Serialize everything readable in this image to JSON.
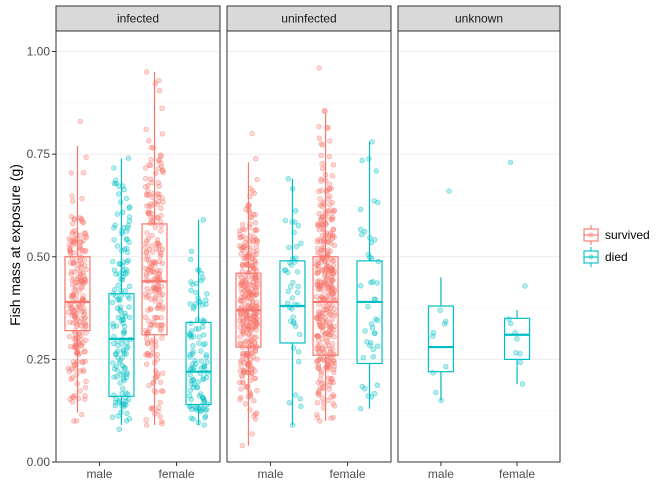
{
  "chart_data": {
    "type": "boxplot-jitter",
    "ylabel": "Fish mass at exposure (g)",
    "xlabel": "",
    "ylim": [
      0.0,
      1.05
    ],
    "y_ticks": [
      "0.00",
      "0.25",
      "0.50",
      "0.75",
      "1.00"
    ],
    "y_tick_values": [
      0.0,
      0.25,
      0.5,
      0.75,
      1.0
    ],
    "legend_placement": "right",
    "grid": true,
    "categories": [
      "male",
      "female"
    ],
    "series": [
      {
        "name": "survived",
        "color": "#F8766D"
      },
      {
        "name": "died",
        "color": "#00BFC4"
      }
    ],
    "facets": [
      {
        "label": "infected",
        "boxes": [
          {
            "category": "male",
            "series": "survived",
            "min": 0.12,
            "q1": 0.32,
            "median": 0.39,
            "q3": 0.5,
            "max": 0.77,
            "n_points": 220,
            "pmin": 0.1,
            "pmax": 0.83
          },
          {
            "category": "male",
            "series": "died",
            "min": 0.09,
            "q1": 0.16,
            "median": 0.3,
            "q3": 0.41,
            "max": 0.74,
            "n_points": 150,
            "pmin": 0.08,
            "pmax": 0.74
          },
          {
            "category": "female",
            "series": "survived",
            "min": 0.09,
            "q1": 0.31,
            "median": 0.44,
            "q3": 0.58,
            "max": 0.95,
            "n_points": 230,
            "pmin": 0.09,
            "pmax": 0.95
          },
          {
            "category": "female",
            "series": "died",
            "min": 0.09,
            "q1": 0.14,
            "median": 0.22,
            "q3": 0.34,
            "max": 0.59,
            "n_points": 110,
            "pmin": 0.09,
            "pmax": 0.59
          }
        ]
      },
      {
        "label": "uninfected",
        "boxes": [
          {
            "category": "male",
            "series": "survived",
            "min": 0.04,
            "q1": 0.28,
            "median": 0.37,
            "q3": 0.46,
            "max": 0.73,
            "n_points": 330,
            "pmin": 0.04,
            "pmax": 0.8
          },
          {
            "category": "male",
            "series": "died",
            "min": 0.09,
            "q1": 0.29,
            "median": 0.38,
            "q3": 0.49,
            "max": 0.69,
            "n_points": 45,
            "pmin": 0.09,
            "pmax": 0.69
          },
          {
            "category": "female",
            "series": "survived",
            "min": 0.1,
            "q1": 0.26,
            "median": 0.39,
            "q3": 0.5,
            "max": 0.85,
            "n_points": 360,
            "pmin": 0.1,
            "pmax": 0.96
          },
          {
            "category": "female",
            "series": "died",
            "min": 0.13,
            "q1": 0.24,
            "median": 0.39,
            "q3": 0.49,
            "max": 0.78,
            "n_points": 45,
            "pmin": 0.13,
            "pmax": 0.78
          }
        ]
      },
      {
        "label": "unknown",
        "boxes": [
          {
            "category": "male",
            "series": "died",
            "min": 0.15,
            "q1": 0.22,
            "median": 0.28,
            "q3": 0.38,
            "max": 0.45,
            "n_points": 10,
            "pmin": 0.15,
            "pmax": 0.66
          },
          {
            "category": "female",
            "series": "died",
            "min": 0.19,
            "q1": 0.25,
            "median": 0.31,
            "q3": 0.35,
            "max": 0.37,
            "n_points": 10,
            "pmin": 0.19,
            "pmax": 0.73
          }
        ]
      }
    ]
  }
}
